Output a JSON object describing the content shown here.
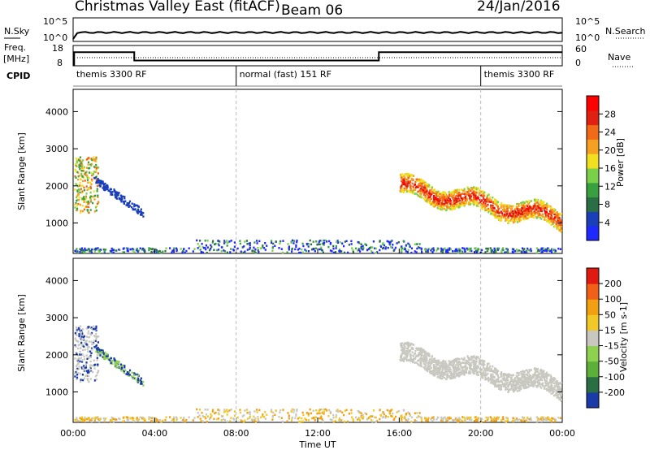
{
  "header": {
    "title": "Christmas Valley East (fitACF)",
    "beam": "Beam 06",
    "date": "24/Jan/2016"
  },
  "top_panels": {
    "nsky_label": "N.Sky",
    "nsearch_label": "N.Search",
    "noise_ticks": [
      "10^5",
      "10^0"
    ],
    "freq_label_1": "Freq.",
    "freq_label_2": "[MHz]",
    "freq_ticks": [
      "18",
      "8"
    ],
    "nave_ticks": [
      "60",
      "0"
    ],
    "nave_label": "Nave",
    "cpid_label": "CPID",
    "cpid_segments": [
      {
        "label": "themis 3300 RF",
        "start_h": 0,
        "end_h": 8
      },
      {
        "label": "normal (fast) 151 RF",
        "start_h": 8,
        "end_h": 20
      },
      {
        "label": "themis 3300 RF",
        "start_h": 20,
        "end_h": 24
      }
    ],
    "freq_trace_mhz": [
      {
        "start_h": 0.0,
        "end_h": 0.05,
        "value": 8.5
      },
      {
        "start_h": 0.05,
        "end_h": 3.0,
        "value": 14.7
      },
      {
        "start_h": 3.0,
        "end_h": 15.0,
        "value": 10.6
      },
      {
        "start_h": 15.0,
        "end_h": 24.0,
        "value": 14.7
      }
    ]
  },
  "chart_data": [
    {
      "type": "heatmap",
      "title": "Power",
      "xlabel": "Time UT",
      "ylabel": "Slant Range [km]",
      "xlim": [
        "00:00",
        "24:00"
      ],
      "ylim": [
        180,
        4600
      ],
      "y_ticks": [
        1000,
        2000,
        3000,
        4000
      ],
      "colorbar": {
        "label": "Power [dB]",
        "ticks": [
          "4",
          "8",
          "12",
          "16",
          "20",
          "24",
          "28"
        ],
        "colors": [
          "#1e28ff",
          "#1a3fb8",
          "#2a6e44",
          "#39a040",
          "#7bd04a",
          "#f2e020",
          "#f5a020",
          "#f06a18",
          "#e02010",
          "#ff0000"
        ]
      }
    },
    {
      "type": "heatmap",
      "title": "Velocity",
      "xlabel": "Time UT",
      "ylabel": "Slant Range [km]",
      "xlim": [
        "00:00",
        "24:00"
      ],
      "ylim": [
        180,
        4600
      ],
      "y_ticks": [
        1000,
        2000,
        3000,
        4000
      ],
      "colorbar": {
        "label": "Velocity [m s-1]",
        "ticks": [
          "200",
          "100",
          "50",
          "15",
          "-15",
          "-50",
          "-100",
          "-200"
        ],
        "colors": [
          "#1a3aa8",
          "#2a6e44",
          "#5cb03a",
          "#8ed050",
          "#c8c8c0",
          "#f0c828",
          "#f0a010",
          "#f06018",
          "#e01a10"
        ]
      }
    }
  ],
  "x_ticks": [
    "00:00",
    "04:00",
    "08:00",
    "12:00",
    "16:00",
    "20:00",
    "00:00"
  ]
}
